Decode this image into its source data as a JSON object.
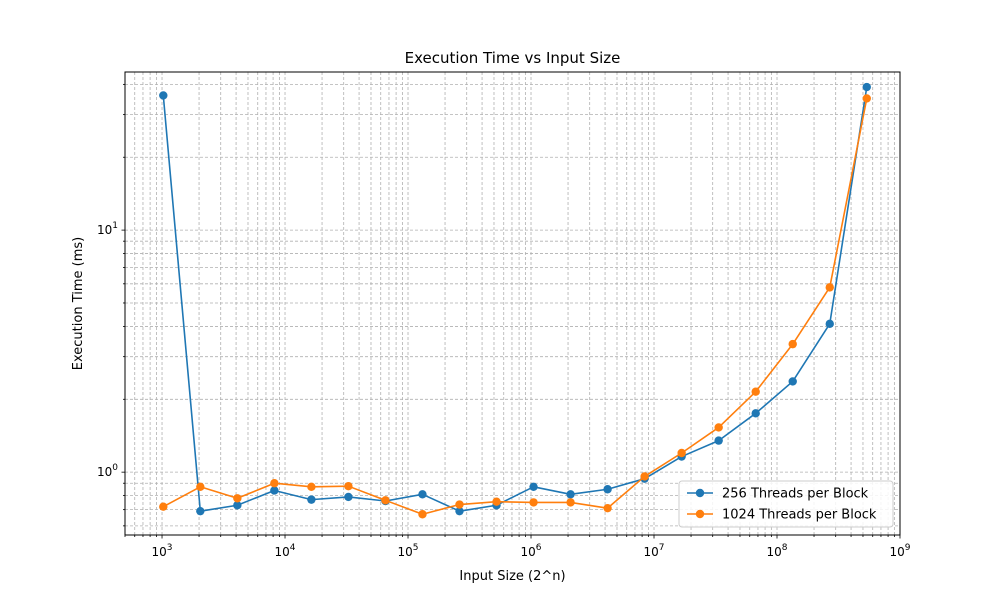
{
  "chart_data": {
    "type": "line",
    "title": "Execution Time vs Input Size",
    "xlabel": "Input Size (2^n)",
    "ylabel": "Execution Time (ms)",
    "xscale": "log",
    "yscale": "log",
    "xlim": [
      500,
      1000000000
    ],
    "ylim": [
      0.55,
      45
    ],
    "grid": true,
    "legend_position": "lower right",
    "x_tick_labels": [
      {
        "value": 1000,
        "base": "10",
        "exp": "3"
      },
      {
        "value": 10000,
        "base": "10",
        "exp": "4"
      },
      {
        "value": 100000,
        "base": "10",
        "exp": "5"
      },
      {
        "value": 1000000,
        "base": "10",
        "exp": "6"
      },
      {
        "value": 10000000,
        "base": "10",
        "exp": "7"
      },
      {
        "value": 100000000,
        "base": "10",
        "exp": "8"
      },
      {
        "value": 1000000000,
        "base": "10",
        "exp": "9"
      }
    ],
    "y_tick_labels": [
      {
        "value": 1,
        "base": "10",
        "exp": "0"
      },
      {
        "value": 10,
        "base": "10",
        "exp": "1"
      }
    ],
    "x": [
      1024,
      2048,
      4096,
      8192,
      16384,
      32768,
      65536,
      131072,
      262144,
      524288,
      1048576,
      2097152,
      4194304,
      8388608,
      16777216,
      33554432,
      67108864,
      134217728,
      268435456,
      536870912
    ],
    "series": [
      {
        "name": "256 Threads per Block",
        "color": "#1f77b4",
        "values": [
          36.0,
          0.69,
          0.73,
          0.84,
          0.77,
          0.79,
          0.76,
          0.81,
          0.69,
          0.73,
          0.87,
          0.81,
          0.85,
          0.94,
          1.16,
          1.35,
          1.75,
          2.37,
          4.1,
          39.0
        ]
      },
      {
        "name": "1024 Threads per Block",
        "color": "#ff7f0e",
        "values": [
          0.72,
          0.87,
          0.78,
          0.9,
          0.87,
          0.875,
          0.765,
          0.67,
          0.735,
          0.755,
          0.75,
          0.75,
          0.71,
          0.96,
          1.2,
          1.53,
          2.15,
          3.38,
          5.8,
          35.0
        ]
      }
    ]
  }
}
